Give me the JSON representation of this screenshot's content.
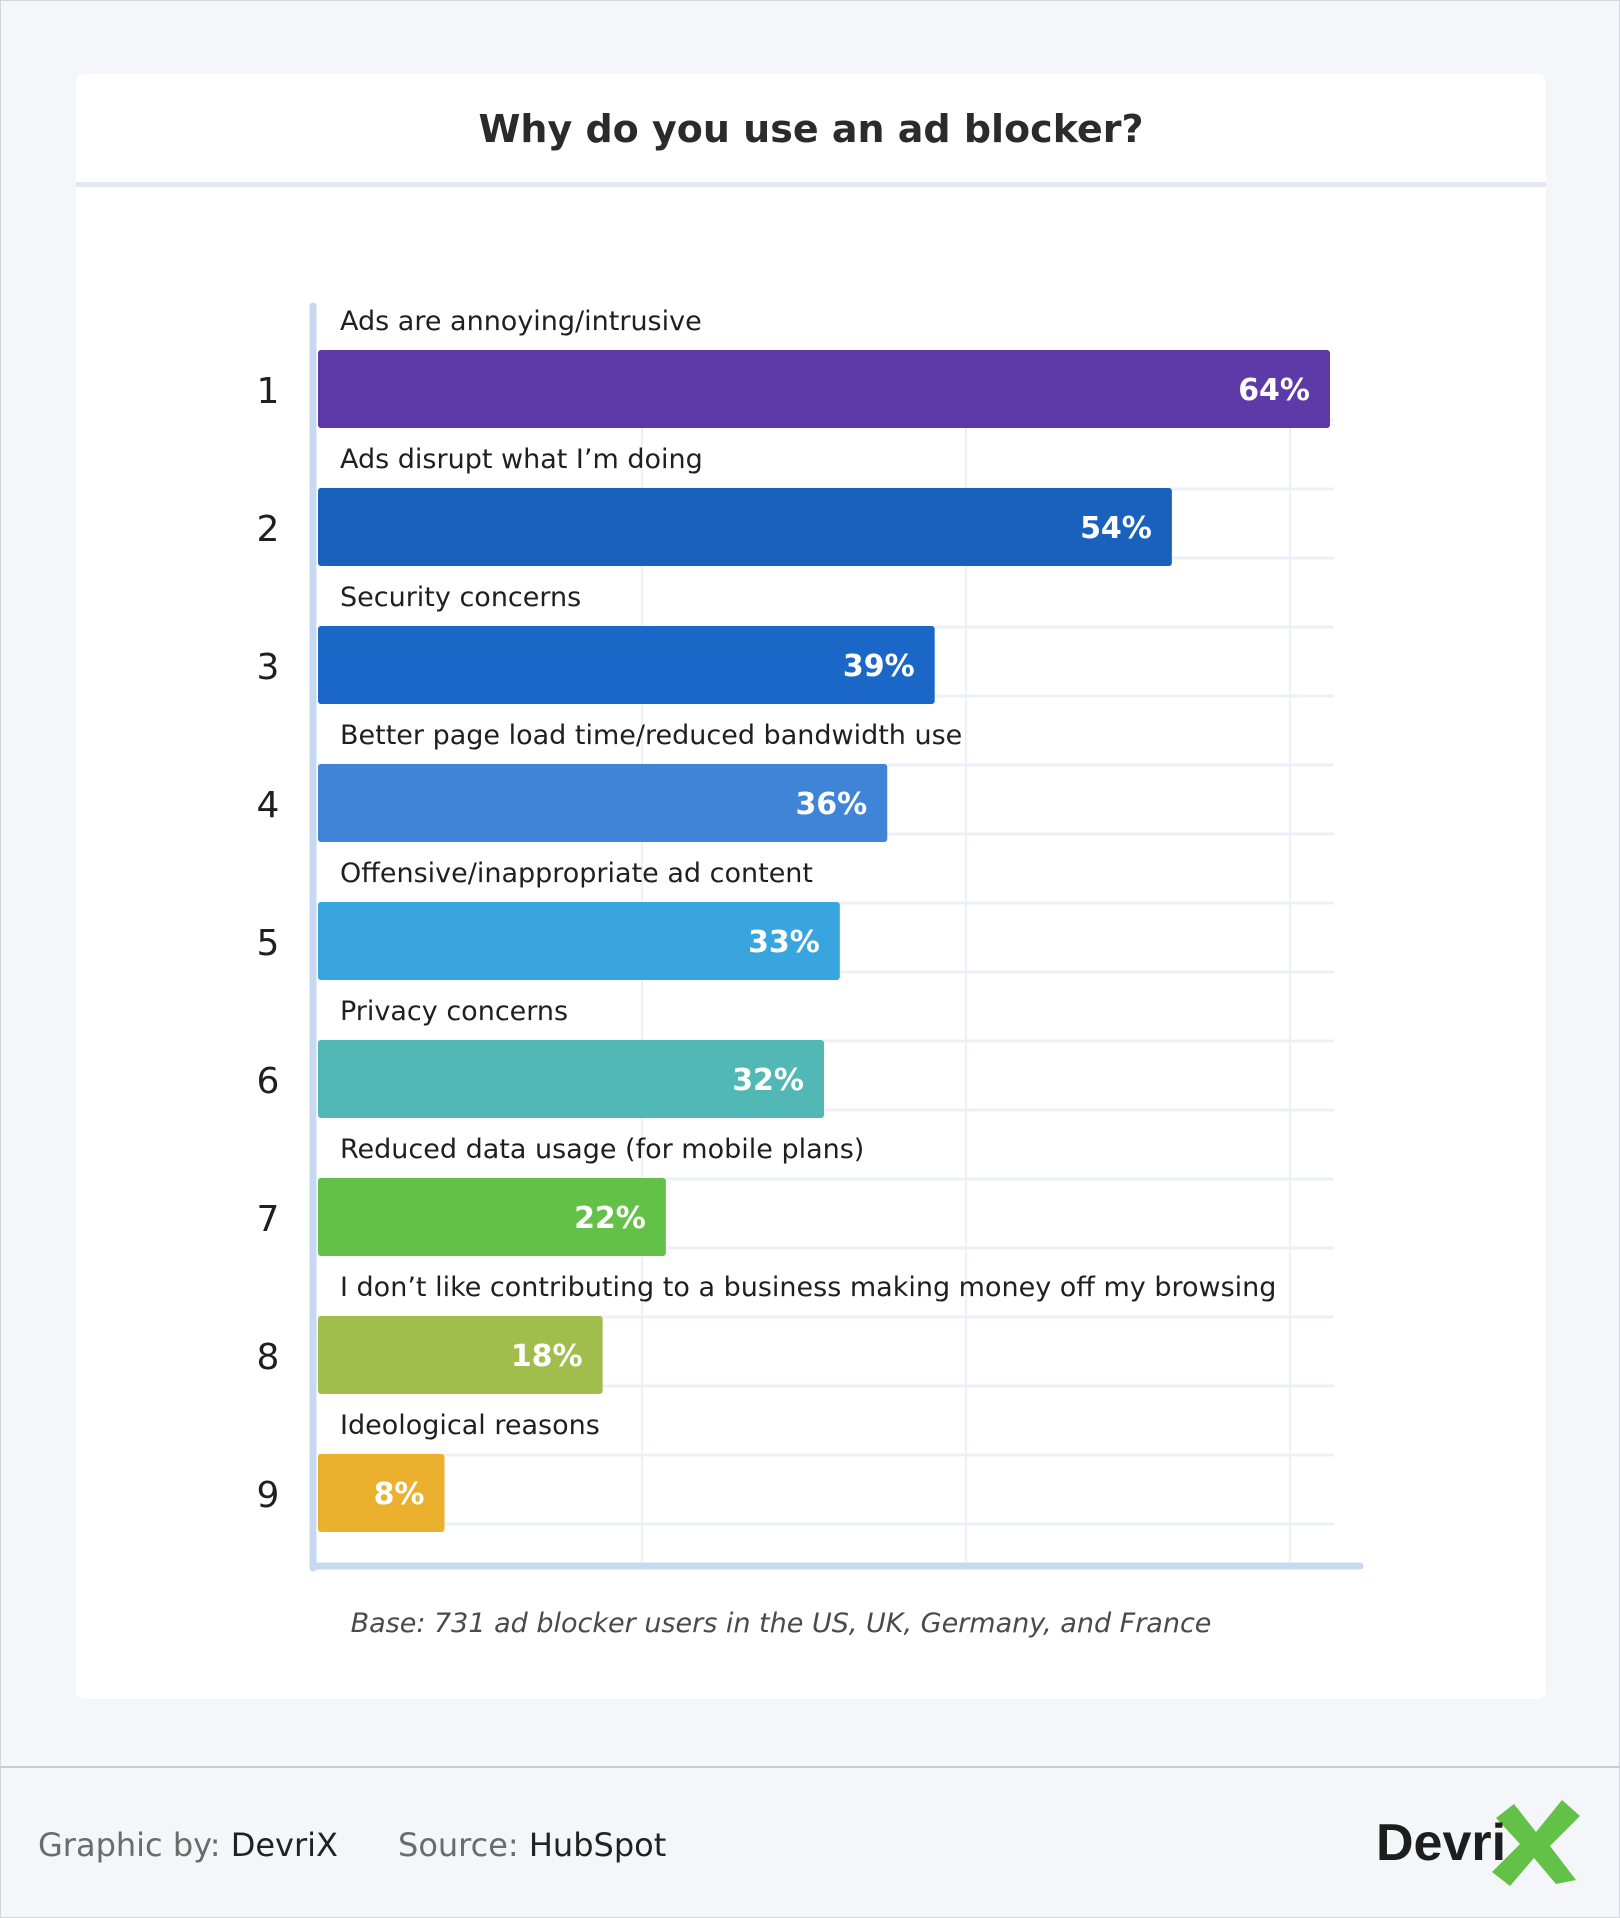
{
  "chart_data": {
    "type": "bar",
    "orientation": "horizontal",
    "title": "Why do you use an ad blocker?",
    "categories": [
      "Ads are annoying/intrusive",
      "Ads disrupt what I’m doing",
      "Security concerns",
      "Better page load time/reduced bandwidth use",
      "Offensive/inappropriate ad content",
      "Privacy concerns",
      "Reduced data usage (for mobile plans)",
      "I don’t like contributing to a business making money off my browsing",
      "Ideological reasons"
    ],
    "ranks": [
      "1",
      "2",
      "3",
      "4",
      "5",
      "6",
      "7",
      "8",
      "9"
    ],
    "values": [
      64,
      54,
      39,
      36,
      33,
      32,
      22,
      18,
      8
    ],
    "value_labels": [
      "64%",
      "54%",
      "39%",
      "36%",
      "33%",
      "32%",
      "22%",
      "18%",
      "8%"
    ],
    "colors": [
      "#5e3aa8",
      "#1a60bd",
      "#1a67c8",
      "#3f84d6",
      "#38a5de",
      "#52b8b5",
      "#62c146",
      "#a1bd4b",
      "#ebb12e"
    ],
    "xlim": [
      0,
      64
    ],
    "grid": true,
    "note": "Base: 731 ad blocker users in the US, UK, Germany, and France"
  },
  "footer": {
    "graphic_label": "Graphic by:",
    "graphic_value": "DevriX",
    "source_label": "Source:",
    "source_value": "HubSpot",
    "logo_text": "Devri",
    "logo_accent": "#62c146"
  }
}
